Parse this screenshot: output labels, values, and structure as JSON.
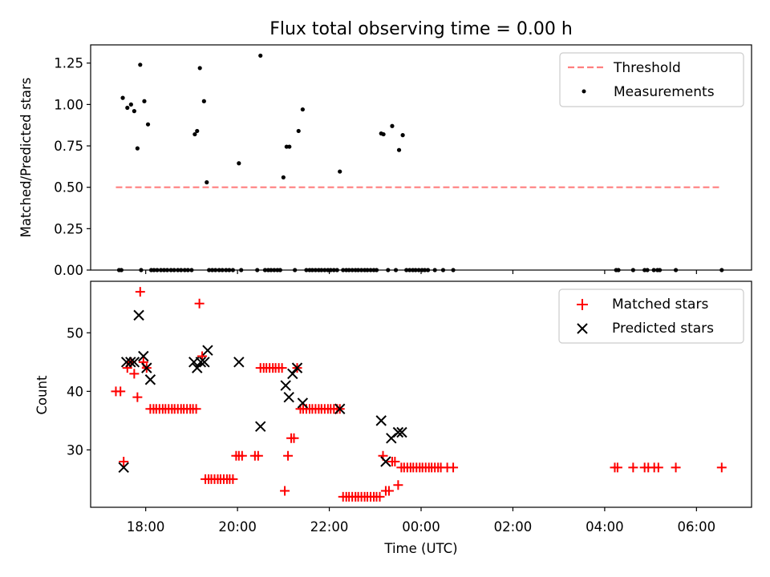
{
  "chart_data": [
    {
      "type": "scatter",
      "title": "Flux total observing time = 0.00 h",
      "xlabel": "",
      "ylabel": "Matched/Predicted stars",
      "xlim": [
        16.8,
        31.2
      ],
      "ylim": [
        0.0,
        1.36
      ],
      "yticks": [
        0.0,
        0.25,
        0.5,
        0.75,
        1.0,
        1.25
      ],
      "ytick_labels": [
        "0.00",
        "0.25",
        "0.50",
        "0.75",
        "1.00",
        "1.25"
      ],
      "legend": {
        "placement": "top-right",
        "threshold": "Threshold",
        "measurements": "Measurements"
      },
      "threshold": {
        "x": [
          17.35,
          30.55
        ],
        "y": 0.5,
        "color": "#ff7f7f"
      },
      "measurements": {
        "color": "#000000",
        "x": [
          17.5,
          17.6,
          17.68,
          17.75,
          17.82,
          17.88,
          17.97,
          18.05,
          18.12,
          19.07,
          19.12,
          19.18,
          19.27,
          19.33,
          20.03,
          20.5,
          21.0,
          21.07,
          21.13,
          21.33,
          21.42,
          22.23,
          23.13,
          23.18,
          23.37,
          23.52,
          23.6,
          17.42,
          17.47,
          17.9,
          18.18,
          18.25,
          18.33,
          18.4,
          18.47,
          18.55,
          18.62,
          18.7,
          18.77,
          18.85,
          18.92,
          19.0,
          19.38,
          19.45,
          19.52,
          19.6,
          19.67,
          19.75,
          19.82,
          19.9,
          20.08,
          20.43,
          20.6,
          20.67,
          20.73,
          20.8,
          20.87,
          20.93,
          21.25,
          21.5,
          21.57,
          21.63,
          21.7,
          21.77,
          21.83,
          21.9,
          21.97,
          22.03,
          22.1,
          22.17,
          22.3,
          22.37,
          22.43,
          22.5,
          22.57,
          22.63,
          22.7,
          22.77,
          22.83,
          22.9,
          22.97,
          23.03,
          23.28,
          23.45,
          23.68,
          23.75,
          23.82,
          23.88,
          23.95,
          24.02,
          24.08,
          24.15,
          24.3,
          24.48,
          24.7,
          28.25,
          28.3,
          28.62,
          28.87,
          28.93,
          29.07,
          29.15,
          29.2,
          29.55,
          30.55
        ],
        "y": [
          1.04,
          0.98,
          1.0,
          0.96,
          0.735,
          1.24,
          1.02,
          0.88,
          0.0,
          0.82,
          0.84,
          1.22,
          1.02,
          0.53,
          0.645,
          1.295,
          0.56,
          0.745,
          0.745,
          0.84,
          0.97,
          0.595,
          0.825,
          0.82,
          0.87,
          0.725,
          0.815,
          0,
          0,
          0,
          0,
          0,
          0,
          0,
          0,
          0,
          0,
          0,
          0,
          0,
          0,
          0,
          0,
          0,
          0,
          0,
          0,
          0,
          0,
          0,
          0,
          0,
          0,
          0,
          0,
          0,
          0,
          0,
          0,
          0,
          0,
          0,
          0,
          0,
          0,
          0,
          0,
          0,
          0,
          0,
          0,
          0,
          0,
          0,
          0,
          0,
          0,
          0,
          0,
          0,
          0,
          0,
          0,
          0,
          0,
          0,
          0,
          0,
          0,
          0,
          0,
          0,
          0,
          0,
          0,
          0,
          0,
          0,
          0,
          0,
          0,
          0,
          0,
          0,
          0
        ]
      }
    },
    {
      "type": "scatter",
      "title": "",
      "xlabel": "Time (UTC)",
      "ylabel": "Count",
      "xlim": [
        16.8,
        31.2
      ],
      "ylim": [
        20.2,
        58.8
      ],
      "yticks": [
        30,
        40,
        50
      ],
      "ytick_labels": [
        "30",
        "40",
        "50"
      ],
      "xticks": [
        18,
        20,
        22,
        24,
        26,
        28,
        30
      ],
      "xtick_labels": [
        "18:00",
        "20:00",
        "22:00",
        "00:00",
        "02:00",
        "04:00",
        "06:00"
      ],
      "legend": {
        "placement": "top-right",
        "matched": "Matched stars",
        "predicted": "Predicted stars"
      },
      "series": [
        {
          "name": "Matched stars",
          "marker": "+",
          "color": "#ff0000",
          "x": [
            17.35,
            17.45,
            17.52,
            17.6,
            17.68,
            17.75,
            17.82,
            17.88,
            17.95,
            18.02,
            18.1,
            18.17,
            18.23,
            18.3,
            18.37,
            18.43,
            18.5,
            18.57,
            18.63,
            18.7,
            18.77,
            18.83,
            18.9,
            18.97,
            19.03,
            19.1,
            19.17,
            19.23,
            19.3,
            19.37,
            19.43,
            19.5,
            19.57,
            19.63,
            19.7,
            19.77,
            19.83,
            19.9,
            19.97,
            20.03,
            20.1,
            20.38,
            20.45,
            20.5,
            20.57,
            20.63,
            20.7,
            20.77,
            20.83,
            20.9,
            20.97,
            21.03,
            21.1,
            21.17,
            21.23,
            21.3,
            21.37,
            21.43,
            21.5,
            21.57,
            21.63,
            21.7,
            21.77,
            21.83,
            21.9,
            21.97,
            22.03,
            22.1,
            22.17,
            22.23,
            22.3,
            22.37,
            22.43,
            22.5,
            22.57,
            22.63,
            22.7,
            22.77,
            22.83,
            22.9,
            22.97,
            23.03,
            23.1,
            23.17,
            23.23,
            23.3,
            23.37,
            23.43,
            23.5,
            23.57,
            23.63,
            23.7,
            23.77,
            23.83,
            23.9,
            23.97,
            24.03,
            24.1,
            24.17,
            24.23,
            24.3,
            24.37,
            24.43,
            24.57,
            24.7,
            28.22,
            28.28,
            28.62,
            28.87,
            28.95,
            29.08,
            29.17,
            29.55,
            30.55
          ],
          "y": [
            40,
            40,
            28,
            44,
            45,
            43,
            39,
            57,
            45,
            44,
            37,
            37,
            37,
            37,
            37,
            37,
            37,
            37,
            37,
            37,
            37,
            37,
            37,
            37,
            37,
            37,
            55,
            46,
            25,
            25,
            25,
            25,
            25,
            25,
            25,
            25,
            25,
            25,
            29,
            29,
            29,
            29,
            29,
            44,
            44,
            44,
            44,
            44,
            44,
            44,
            44,
            23,
            29,
            32,
            32,
            44,
            37,
            37,
            37,
            37,
            37,
            37,
            37,
            37,
            37,
            37,
            37,
            37,
            37,
            37,
            22,
            22,
            22,
            22,
            22,
            22,
            22,
            22,
            22,
            22,
            22,
            22,
            22,
            29,
            23,
            23,
            28,
            28,
            24,
            27,
            27,
            27,
            27,
            27,
            27,
            27,
            27,
            27,
            27,
            27,
            27,
            27,
            27,
            27,
            27,
            27,
            27,
            27,
            27,
            27,
            27,
            27,
            27,
            27
          ]
        },
        {
          "name": "Predicted stars",
          "marker": "x",
          "color": "#000000",
          "x": [
            17.52,
            17.58,
            17.67,
            17.75,
            17.85,
            17.95,
            18.02,
            18.1,
            19.05,
            19.12,
            19.2,
            19.28,
            19.35,
            20.03,
            20.5,
            21.05,
            21.12,
            21.2,
            21.3,
            21.42,
            22.23,
            23.13,
            23.23,
            23.35,
            23.5,
            23.58
          ],
          "y": [
            27,
            45,
            45,
            45,
            53,
            46,
            44,
            42,
            45,
            44,
            45,
            45,
            47,
            45,
            34,
            41,
            39,
            43,
            44,
            38,
            37,
            35,
            28,
            32,
            33,
            33
          ]
        }
      ]
    }
  ]
}
